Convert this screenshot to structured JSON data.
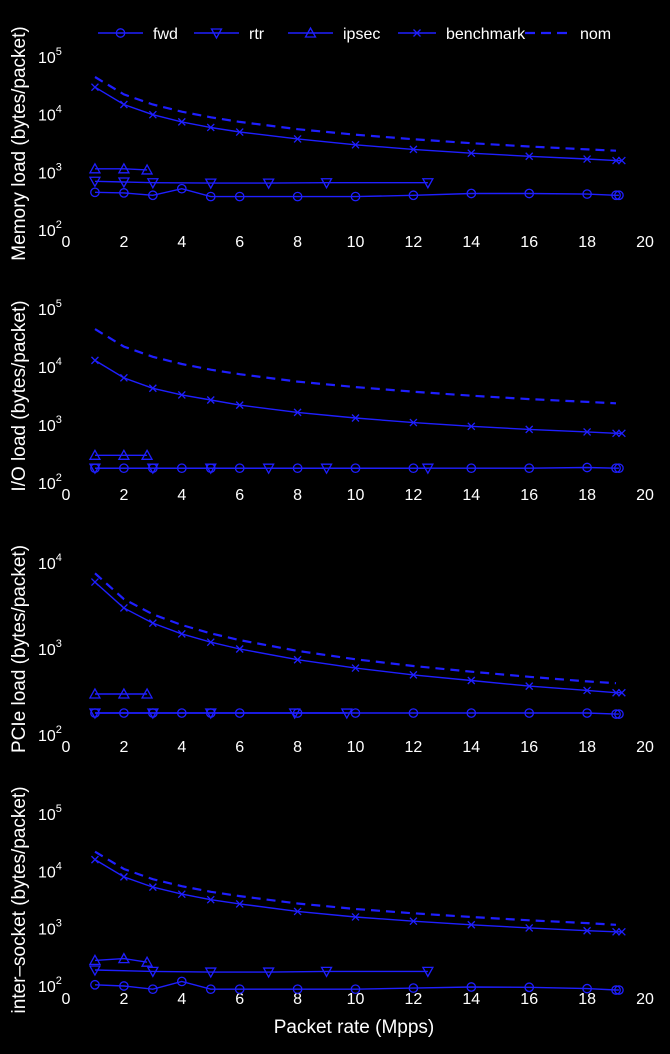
{
  "colors": {
    "background": "#000000",
    "series": "#1f1fff",
    "text": "#ffffff"
  },
  "chart_data": {
    "type": "line",
    "xlabel": "Packet rate (Mpps)",
    "xlim": [
      0,
      20
    ],
    "xticks": [
      0,
      2,
      4,
      6,
      8,
      10,
      12,
      14,
      16,
      18,
      20
    ],
    "yscale": "log",
    "grid": false,
    "legend": {
      "position": "top",
      "entries": [
        {
          "name": "fwd",
          "style": "solid",
          "marker": "circle"
        },
        {
          "name": "rtr",
          "style": "solid",
          "marker": "triangle-down"
        },
        {
          "name": "ipsec",
          "style": "solid",
          "marker": "triangle-up"
        },
        {
          "name": "benchmark",
          "style": "solid",
          "marker": "x"
        },
        {
          "name": "nom",
          "style": "dashed",
          "marker": "none"
        }
      ]
    },
    "panels": [
      {
        "ylabel": "Memory load (bytes/packet)",
        "ylim": [
          100,
          100000
        ],
        "yticks": [
          {
            "base": "10",
            "exp": "2"
          },
          {
            "base": "10",
            "exp": "3"
          },
          {
            "base": "10",
            "exp": "4"
          },
          {
            "base": "10",
            "exp": "5"
          }
        ],
        "series": [
          {
            "name": "fwd",
            "x": [
              1,
              2,
              3,
              4,
              5,
              6,
              8,
              10,
              12,
              14,
              16,
              18,
              19,
              19.1
            ],
            "y": [
              450,
              440,
              400,
              520,
              380,
              380,
              380,
              380,
              400,
              430,
              430,
              420,
              400,
              400
            ]
          },
          {
            "name": "rtr",
            "x": [
              1,
              2,
              3,
              5,
              7,
              9,
              12.5
            ],
            "y": [
              700,
              680,
              660,
              650,
              650,
              660,
              660
            ]
          },
          {
            "name": "ipsec",
            "x": [
              1,
              2,
              2.8
            ],
            "y": [
              1150,
              1150,
              1100
            ]
          },
          {
            "name": "benchmark",
            "x": [
              1,
              2,
              3,
              4,
              5,
              6,
              8,
              10,
              12,
              14,
              16,
              18,
              19,
              19.2
            ],
            "y": [
              30000,
              15000,
              10000,
              7500,
              6000,
              5000,
              3800,
              3000,
              2500,
              2150,
              1900,
              1700,
              1600,
              1600
            ]
          },
          {
            "name": "nom",
            "x": [
              1,
              2,
              3,
              4,
              5,
              6,
              8,
              10,
              12,
              14,
              16,
              18,
              19
            ],
            "y": [
              45000,
              22500,
              15000,
              11250,
              9000,
              7500,
              5600,
              4500,
              3750,
              3200,
              2800,
              2500,
              2370
            ]
          }
        ]
      },
      {
        "ylabel": "I/O load (bytes/packet)",
        "ylim": [
          100,
          100000
        ],
        "yticks": [
          {
            "base": "10",
            "exp": "2"
          },
          {
            "base": "10",
            "exp": "3"
          },
          {
            "base": "10",
            "exp": "4"
          },
          {
            "base": "10",
            "exp": "5"
          }
        ],
        "series": [
          {
            "name": "fwd",
            "x": [
              1,
              2,
              3,
              4,
              5,
              6,
              8,
              10,
              12,
              14,
              16,
              18,
              19,
              19.1
            ],
            "y": [
              180,
              180,
              180,
              180,
              180,
              180,
              180,
              180,
              180,
              180,
              180,
              185,
              180,
              180
            ]
          },
          {
            "name": "rtr",
            "x": [
              1,
              3,
              5,
              7,
              9,
              12.5
            ],
            "y": [
              180,
              180,
              180,
              180,
              180,
              180
            ]
          },
          {
            "name": "ipsec",
            "x": [
              1,
              2,
              2.8
            ],
            "y": [
              300,
              300,
              300
            ]
          },
          {
            "name": "benchmark",
            "x": [
              1,
              2,
              3,
              4,
              5,
              6,
              8,
              10,
              12,
              14,
              16,
              18,
              19,
              19.2
            ],
            "y": [
              13000,
              6500,
              4300,
              3300,
              2700,
              2200,
              1650,
              1320,
              1100,
              950,
              840,
              760,
              720,
              720
            ]
          },
          {
            "name": "nom",
            "x": [
              1,
              2,
              3,
              4,
              5,
              6,
              8,
              10,
              12,
              14,
              16,
              18,
              19
            ],
            "y": [
              45000,
              22500,
              15000,
              11250,
              9000,
              7500,
              5600,
              4500,
              3750,
              3200,
              2800,
              2500,
              2370
            ]
          }
        ]
      },
      {
        "ylabel": "PCIe load (bytes/packet)",
        "ylim": [
          100,
          10000
        ],
        "yticks": [
          {
            "base": "10",
            "exp": "2"
          },
          {
            "base": "10",
            "exp": "3"
          },
          {
            "base": "10",
            "exp": "4"
          }
        ],
        "series": [
          {
            "name": "fwd",
            "x": [
              1,
              2,
              3,
              4,
              5,
              6,
              8,
              10,
              12,
              14,
              16,
              18,
              19,
              19.1
            ],
            "y": [
              180,
              180,
              180,
              180,
              180,
              180,
              180,
              180,
              180,
              180,
              180,
              180,
              175,
              175
            ]
          },
          {
            "name": "rtr",
            "x": [
              1,
              3,
              5,
              7.9,
              9.7
            ],
            "y": [
              180,
              180,
              180,
              180,
              180
            ]
          },
          {
            "name": "ipsec",
            "x": [
              1,
              2,
              2.8
            ],
            "y": [
              300,
              300,
              300
            ]
          },
          {
            "name": "benchmark",
            "x": [
              1,
              2,
              3,
              4,
              5,
              6,
              8,
              10,
              12,
              14,
              16,
              18,
              19,
              19.2
            ],
            "y": [
              6000,
              3000,
              2000,
              1500,
              1200,
              1000,
              750,
              600,
              500,
              430,
              370,
              330,
              310,
              310
            ]
          },
          {
            "name": "nom",
            "x": [
              1,
              2,
              3,
              4,
              5,
              6,
              8,
              10,
              12,
              14,
              16,
              18,
              19
            ],
            "y": [
              7600,
              3800,
              2530,
              1900,
              1520,
              1270,
              950,
              760,
              635,
              545,
              475,
              420,
              400
            ]
          }
        ]
      },
      {
        "ylabel": "inter–socket (bytes/packet)",
        "ylim": [
          100,
          100000
        ],
        "yticks": [
          {
            "base": "10",
            "exp": "2"
          },
          {
            "base": "10",
            "exp": "3"
          },
          {
            "base": "10",
            "exp": "4"
          },
          {
            "base": "10",
            "exp": "5"
          }
        ],
        "series": [
          {
            "name": "fwd",
            "x": [
              1,
              2,
              3,
              4,
              5,
              6,
              8,
              10,
              12,
              14,
              16,
              18,
              19,
              19.1
            ],
            "y": [
              105,
              100,
              88,
              120,
              88,
              88,
              88,
              88,
              92,
              96,
              95,
              90,
              85,
              85
            ]
          },
          {
            "name": "rtr",
            "x": [
              1,
              3,
              5,
              7,
              9,
              12.5
            ],
            "y": [
              190,
              180,
              175,
              175,
              180,
              180
            ]
          },
          {
            "name": "ipsec",
            "x": [
              1,
              2,
              2.8
            ],
            "y": [
              280,
              300,
              260
            ]
          },
          {
            "name": "benchmark",
            "x": [
              1,
              2,
              3,
              4,
              5,
              6,
              8,
              10,
              12,
              14,
              16,
              18,
              19,
              19.2
            ],
            "y": [
              16000,
              8000,
              5300,
              4000,
              3200,
              2700,
              2000,
              1600,
              1350,
              1170,
              1030,
              920,
              880,
              880
            ]
          },
          {
            "name": "nom",
            "x": [
              1,
              2,
              3,
              4,
              5,
              6,
              8,
              10,
              12,
              14,
              16,
              18,
              19
            ],
            "y": [
              22000,
              11000,
              7300,
              5500,
              4400,
              3700,
              2750,
              2200,
              1850,
              1600,
              1400,
              1250,
              1170
            ]
          }
        ]
      }
    ]
  }
}
